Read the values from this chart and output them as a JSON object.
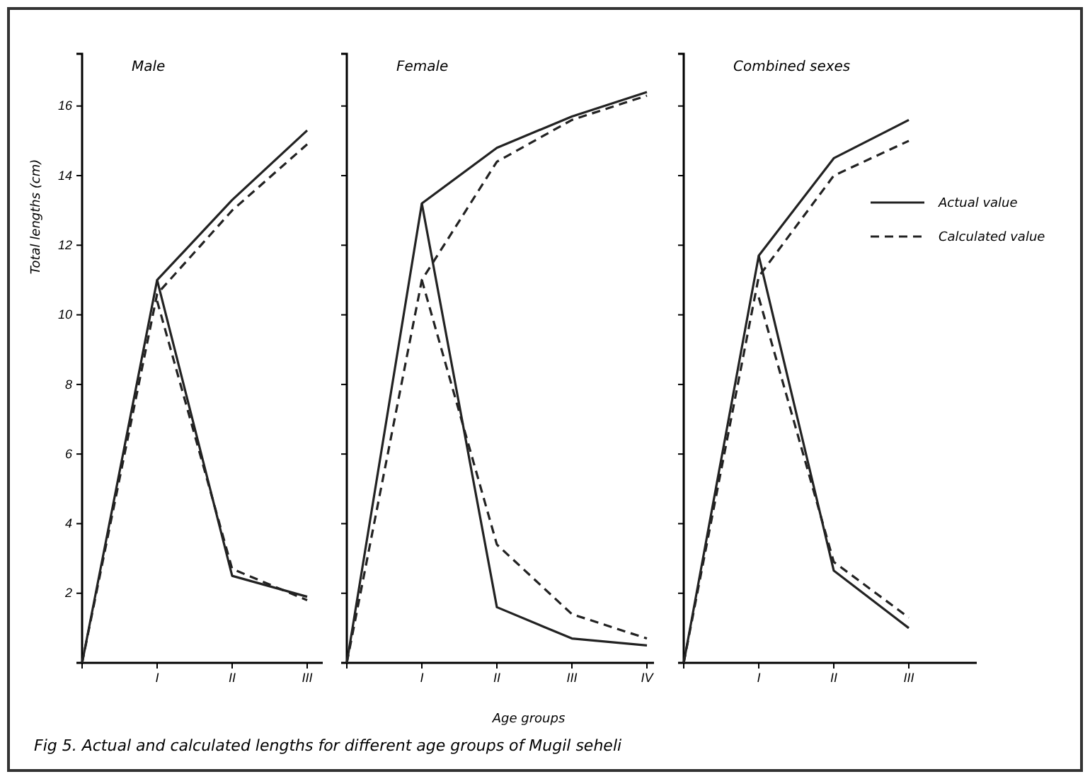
{
  "chart_data": [
    {
      "type": "line",
      "title": "Male",
      "ylabel": "Total lengths (cm)",
      "categories": [
        null,
        "I",
        "II",
        "III"
      ],
      "ylim": [
        0,
        17.5
      ],
      "yticks": [
        2,
        4,
        6,
        8,
        10,
        12,
        14,
        16
      ],
      "legend": false,
      "series": [
        {
          "color": "#222222",
          "line_style": "solid",
          "values": [
            0,
            11.0,
            13.3,
            15.3
          ]
        },
        {
          "color": "#222222",
          "line_style": "dashed",
          "values": [
            0,
            10.6,
            13.0,
            14.9
          ]
        },
        {
          "color": "#222222",
          "line_style": "solid",
          "values": [
            null,
            11.0,
            2.5,
            1.9
          ]
        },
        {
          "color": "#222222",
          "line_style": "dashed",
          "values": [
            null,
            10.4,
            2.7,
            1.8
          ]
        }
      ]
    },
    {
      "type": "line",
      "title": "Female",
      "xlabel": "Age groups",
      "categories": [
        null,
        "I",
        "II",
        "III",
        "IV"
      ],
      "ylim": [
        0,
        17.5
      ],
      "yticks": [
        2,
        4,
        6,
        8,
        10,
        12,
        14,
        16
      ],
      "tick_labels": "x",
      "legend": false,
      "series": [
        {
          "color": "#222222",
          "line_style": "solid",
          "values": [
            0,
            13.2,
            14.8,
            15.7,
            16.4
          ]
        },
        {
          "color": "#222222",
          "line_style": "dashed",
          "values": [
            0,
            11.0,
            14.4,
            15.6,
            16.3
          ]
        },
        {
          "color": "#222222",
          "line_style": "solid",
          "values": [
            null,
            13.2,
            1.6,
            0.7,
            0.5
          ]
        },
        {
          "color": "#222222",
          "line_style": "dashed",
          "values": [
            null,
            11.0,
            3.4,
            1.4,
            0.7
          ]
        }
      ]
    },
    {
      "type": "line",
      "title": "Combined sexes",
      "categories": [
        null,
        "I",
        "II",
        "III"
      ],
      "ylim": [
        0,
        17.5
      ],
      "yticks": [
        2,
        4,
        6,
        8,
        10,
        12,
        14,
        16
      ],
      "tick_labels": "x",
      "legend": "right",
      "annotations": [
        "Fig 5. Actual and calculated lengths for different age groups of Mugil seheli"
      ],
      "series": [
        {
          "name": "Actual value",
          "color": "#222222",
          "line_style": "solid",
          "values": [
            0,
            11.7,
            14.5,
            15.6
          ]
        },
        {
          "name": "Calculated value",
          "color": "#222222",
          "line_style": "dashed",
          "values": [
            0,
            11.1,
            14.0,
            15.0
          ]
        },
        {
          "color": "#222222",
          "line_style": "solid",
          "values": [
            null,
            11.7,
            2.65,
            1.0
          ]
        },
        {
          "color": "#222222",
          "line_style": "dashed",
          "values": [
            null,
            10.5,
            2.9,
            1.3
          ]
        }
      ]
    }
  ]
}
